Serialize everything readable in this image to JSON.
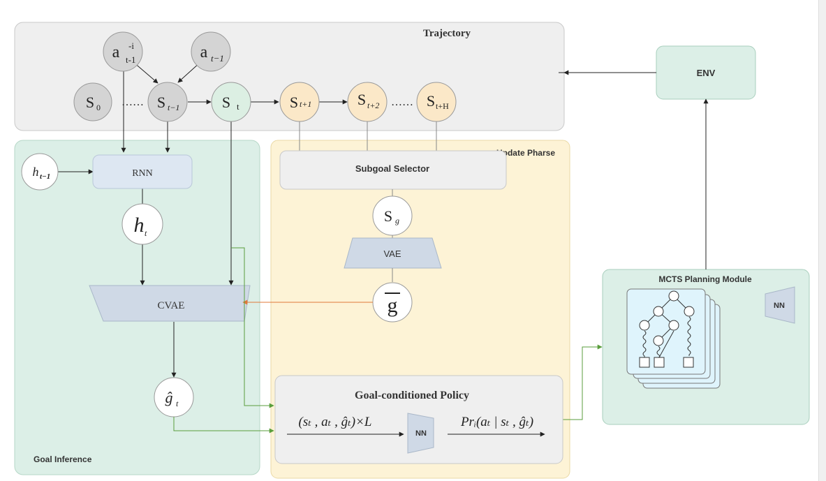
{
  "regions": {
    "trajectory": "Trajectory",
    "env": "ENV",
    "goal_inference": "Goal Inference",
    "update_phase": "Update Pharse",
    "subgoal_selector": "Subgoal Selector",
    "mcts": "MCTS Planning Module",
    "policy": "Goal-conditioned Policy"
  },
  "blocks": {
    "rnn": "RNN",
    "cvae": "CVAE",
    "vae": "VAE",
    "nn_policy": "NN",
    "nn_mcts": "NN"
  },
  "nodes": {
    "a_ti": {
      "base": "a",
      "sup": "-i",
      "sub": "t-1"
    },
    "a_t1": {
      "base": "a",
      "sub": "t−1"
    },
    "s0": {
      "base": "S",
      "sub": "0"
    },
    "dots1": "……",
    "s_t1": {
      "base": "S",
      "sub": "t−1"
    },
    "s_t": {
      "base": "S",
      "sub": "t"
    },
    "s_tp1": {
      "base": "S",
      "sub": "t+1"
    },
    "s_tp2": {
      "base": "S",
      "sub": "t+2"
    },
    "dots2": "……",
    "s_tH": {
      "base": "S",
      "sub": "t+H"
    },
    "h_t1": {
      "base": "h",
      "sub": "t−1"
    },
    "h_t": {
      "base": "h",
      "sub": "t"
    },
    "s_g": {
      "base": "S",
      "sub": "g"
    },
    "g_bar": "g",
    "g_hat": {
      "base": "ĝ",
      "sub": "t"
    }
  },
  "formulas": {
    "input": "(sₜ , aₜ , ĝₜ)×L",
    "output": "Prᵢ(aₜ | sₜ , ĝₜ)"
  },
  "colors": {
    "region_gray": "#efefef",
    "region_green": "#dcefe7",
    "region_yellow": "#fdf3d6",
    "block_blue": "#dde7f2",
    "trapezoid": "#cfd9e6",
    "node_gray": "#d4d4d4",
    "node_green": "#dcefe3",
    "node_yellow": "#fbe8c8",
    "edge_green": "#5a9e3c",
    "edge_orange": "#e0793a"
  }
}
